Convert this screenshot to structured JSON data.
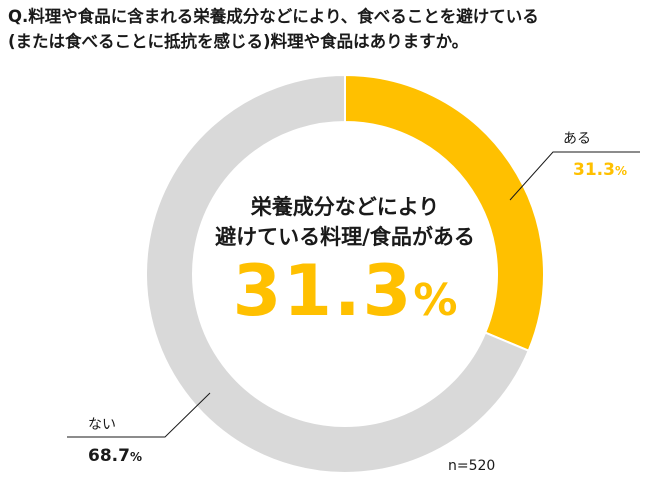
{
  "question": {
    "line1": "Q.料理や食品に含まれる栄養成分などにより、食べることを避けている",
    "line2": "(または食べることに抵抗を感じる)料理や食品はありますか。"
  },
  "center": {
    "line1": "栄養成分などにより",
    "line2": "避けている料理/食品がある",
    "value": "31.3",
    "unit": "%"
  },
  "sample_size": "n=520",
  "colors": {
    "aru": "#ffc000",
    "nai": "#d9d9d9",
    "leader": "#1a1a1a"
  },
  "chart_data": {
    "type": "pie",
    "donut": true,
    "title": "",
    "slices": [
      {
        "label": "ある",
        "value": 31.3,
        "value_text": "31.3",
        "unit": "%",
        "color": "#ffc000"
      },
      {
        "label": "ない",
        "value": 68.7,
        "value_text": "68.7",
        "unit": "%",
        "color": "#d9d9d9"
      }
    ]
  }
}
